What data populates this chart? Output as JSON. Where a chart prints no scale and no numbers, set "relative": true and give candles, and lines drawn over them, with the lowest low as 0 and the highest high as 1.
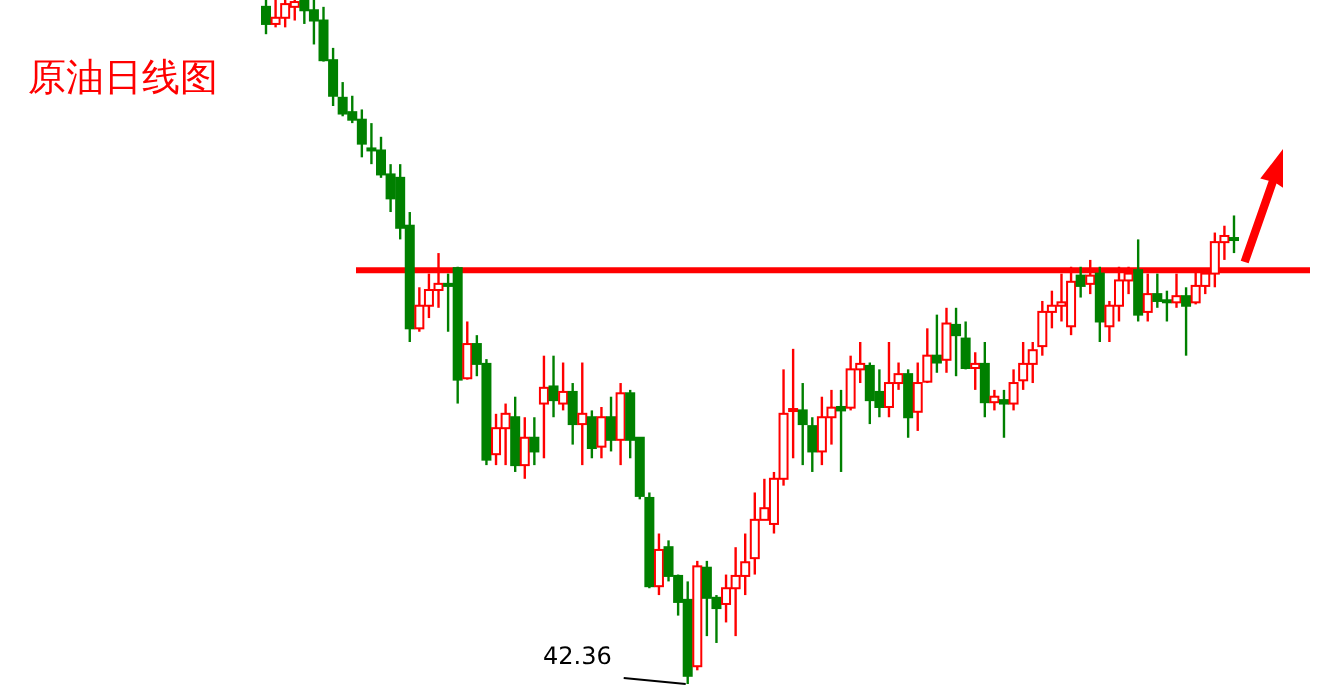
{
  "chart_data": {
    "type": "candlestick",
    "title": "原油日线图",
    "relative": true,
    "categories": [
      null,
      null,
      null,
      null,
      null,
      null,
      null,
      null,
      null,
      null,
      null,
      null,
      null,
      null,
      null,
      null,
      null,
      null,
      null,
      null,
      null,
      null,
      null,
      null,
      null,
      null,
      null,
      null,
      null,
      null,
      null,
      null,
      null,
      null,
      null,
      null,
      null,
      null,
      null,
      null,
      null,
      null,
      null,
      null,
      null,
      null,
      null,
      null,
      null,
      null,
      null,
      null,
      null,
      null,
      null,
      null,
      null,
      null,
      null,
      null,
      null,
      null,
      null,
      null,
      null,
      null,
      null,
      null,
      null,
      null,
      null,
      null,
      null,
      null,
      null,
      null,
      null,
      null,
      null,
      null,
      null,
      null,
      null,
      null,
      null,
      null,
      null,
      null,
      null,
      null,
      null,
      null,
      null,
      null,
      null,
      null,
      null,
      null,
      null,
      null,
      null,
      null
    ],
    "ohlc": [
      [
        0.99,
        1,
        0.95,
        0.965
      ],
      [
        0.965,
        1,
        0.96,
        0.974
      ],
      [
        0.974,
        1,
        0.96,
        0.994
      ],
      [
        0.99,
        1,
        0.97,
        0.997
      ],
      [
        1,
        1,
        0.965,
        0.985
      ],
      [
        0.985,
        1,
        0.935,
        0.97
      ],
      [
        0.97,
        0.99,
        0.91,
        0.912
      ],
      [
        0.912,
        0.93,
        0.845,
        0.86
      ],
      [
        0.857,
        0.88,
        0.83,
        0.834
      ],
      [
        0.836,
        0.86,
        0.82,
        0.825
      ],
      [
        0.825,
        0.84,
        0.77,
        0.79
      ],
      [
        0.783,
        0.82,
        0.76,
        0.781
      ],
      [
        0.78,
        0.8,
        0.74,
        0.745
      ],
      [
        0.745,
        0.76,
        0.69,
        0.71
      ],
      [
        0.74,
        0.76,
        0.65,
        0.667
      ],
      [
        0.67,
        0.69,
        0.5,
        0.52
      ],
      [
        0.52,
        0.58,
        0.515,
        0.553
      ],
      [
        0.553,
        0.6,
        0.535,
        0.576
      ],
      [
        0.576,
        0.63,
        0.55,
        0.585
      ],
      [
        0.585,
        0.6,
        0.515,
        0.582
      ],
      [
        0.608,
        0.61,
        0.41,
        0.445
      ],
      [
        0.447,
        0.53,
        0.445,
        0.497
      ],
      [
        0.497,
        0.51,
        0.45,
        0.468
      ],
      [
        0.468,
        0.475,
        0.32,
        0.328
      ],
      [
        0.336,
        0.395,
        0.32,
        0.374
      ],
      [
        0.374,
        0.41,
        0.32,
        0.395
      ],
      [
        0.39,
        0.42,
        0.31,
        0.32
      ],
      [
        0.32,
        0.39,
        0.3,
        0.36
      ],
      [
        0.36,
        0.39,
        0.32,
        0.34
      ],
      [
        0.41,
        0.48,
        0.33,
        0.433
      ],
      [
        0.435,
        0.48,
        0.39,
        0.415
      ],
      [
        0.41,
        0.47,
        0.4,
        0.427
      ],
      [
        0.427,
        0.44,
        0.35,
        0.38
      ],
      [
        0.38,
        0.47,
        0.32,
        0.395
      ],
      [
        0.39,
        0.4,
        0.33,
        0.345
      ],
      [
        0.347,
        0.405,
        0.33,
        0.39
      ],
      [
        0.39,
        0.42,
        0.34,
        0.357
      ],
      [
        0.357,
        0.44,
        0.32,
        0.425
      ],
      [
        0.425,
        0.43,
        0.33,
        0.357
      ],
      [
        0.36,
        0.36,
        0.27,
        0.275
      ],
      [
        0.272,
        0.28,
        0.14,
        0.143
      ],
      [
        0.143,
        0.22,
        0.13,
        0.196
      ],
      [
        0.2,
        0.21,
        0.15,
        0.158
      ],
      [
        0.158,
        0.16,
        0.1,
        0.12
      ],
      [
        0.123,
        0.15,
        0,
        0.012
      ],
      [
        0.026,
        0.18,
        0.02,
        0.172
      ],
      [
        0.17,
        0.18,
        0.07,
        0.126
      ],
      [
        0.126,
        0.13,
        0.06,
        0.111
      ],
      [
        0.117,
        0.16,
        0.09,
        0.14
      ],
      [
        0.14,
        0.2,
        0.07,
        0.158
      ],
      [
        0.158,
        0.22,
        0.13,
        0.178
      ],
      [
        0.184,
        0.28,
        0.16,
        0.24
      ],
      [
        0.24,
        0.3,
        0.24,
        0.257
      ],
      [
        0.234,
        0.31,
        0.22,
        0.3
      ],
      [
        0.3,
        0.46,
        0.29,
        0.395
      ],
      [
        0.4,
        0.49,
        0.33,
        0.402
      ],
      [
        0.4,
        0.44,
        0.32,
        0.38
      ],
      [
        0.377,
        0.39,
        0.31,
        0.34
      ],
      [
        0.34,
        0.42,
        0.32,
        0.39
      ],
      [
        0.39,
        0.43,
        0.35,
        0.404
      ],
      [
        0.405,
        0.43,
        0.31,
        0.4
      ],
      [
        0.404,
        0.48,
        0.4,
        0.46
      ],
      [
        0.46,
        0.5,
        0.44,
        0.468
      ],
      [
        0.465,
        0.47,
        0.38,
        0.415
      ],
      [
        0.427,
        0.46,
        0.39,
        0.405
      ],
      [
        0.405,
        0.5,
        0.39,
        0.44
      ],
      [
        0.44,
        0.47,
        0.43,
        0.453
      ],
      [
        0.453,
        0.46,
        0.36,
        0.39
      ],
      [
        0.398,
        0.47,
        0.37,
        0.44
      ],
      [
        0.442,
        0.52,
        0.44,
        0.48
      ],
      [
        0.48,
        0.54,
        0.455,
        0.47
      ],
      [
        0.474,
        0.55,
        0.455,
        0.527
      ],
      [
        0.525,
        0.55,
        0.45,
        0.51
      ],
      [
        0.505,
        0.53,
        0.46,
        0.462
      ],
      [
        0.462,
        0.485,
        0.43,
        0.468
      ],
      [
        0.468,
        0.5,
        0.39,
        0.412
      ],
      [
        0.412,
        0.43,
        0.4,
        0.42
      ],
      [
        0.415,
        0.43,
        0.36,
        0.41
      ],
      [
        0.41,
        0.46,
        0.4,
        0.44
      ],
      [
        0.444,
        0.5,
        0.43,
        0.468
      ],
      [
        0.468,
        0.5,
        0.44,
        0.488
      ],
      [
        0.494,
        0.56,
        0.48,
        0.544
      ],
      [
        0.544,
        0.575,
        0.52,
        0.553
      ],
      [
        0.553,
        0.6,
        0.53,
        0.558
      ],
      [
        0.523,
        0.61,
        0.51,
        0.588
      ],
      [
        0.597,
        0.61,
        0.565,
        0.582
      ],
      [
        0.585,
        0.62,
        0.57,
        0.597
      ],
      [
        0.6,
        0.61,
        0.5,
        0.53
      ],
      [
        0.523,
        0.56,
        0.5,
        0.553
      ],
      [
        0.553,
        0.61,
        0.53,
        0.59
      ],
      [
        0.59,
        0.61,
        0.57,
        0.6
      ],
      [
        0.605,
        0.65,
        0.53,
        0.54
      ],
      [
        0.544,
        0.6,
        0.53,
        0.57
      ],
      [
        0.57,
        0.6,
        0.55,
        0.56
      ],
      [
        0.561,
        0.575,
        0.53,
        0.56
      ],
      [
        0.558,
        0.6,
        0.55,
        0.567
      ],
      [
        0.567,
        0.58,
        0.48,
        0.553
      ],
      [
        0.558,
        0.605,
        0.555,
        0.582
      ],
      [
        0.582,
        0.605,
        0.57,
        0.6
      ],
      [
        0.6,
        0.66,
        0.58,
        0.646
      ],
      [
        0.646,
        0.67,
        0.62,
        0.655
      ],
      [
        0.652,
        0.685,
        0.63,
        0.65
      ]
    ],
    "colors": [
      "#008000",
      "#ff0000",
      "#ff0000",
      "#ff0000",
      "#008000",
      "#008000",
      "#008000",
      "#008000",
      "#008000",
      "#008000",
      "#008000",
      "#008000",
      "#008000",
      "#008000",
      "#008000",
      "#008000",
      "#ff0000",
      "#ff0000",
      "#ff0000",
      "#008000",
      "#008000",
      "#ff0000",
      "#008000",
      "#008000",
      "#ff0000",
      "#ff0000",
      "#008000",
      "#ff0000",
      "#008000",
      "#ff0000",
      "#008000",
      "#ff0000",
      "#008000",
      "#ff0000",
      "#008000",
      "#ff0000",
      "#008000",
      "#ff0000",
      "#008000",
      "#008000",
      "#008000",
      "#ff0000",
      "#008000",
      "#008000",
      "#008000",
      "#ff0000",
      "#008000",
      "#008000",
      "#ff0000",
      "#ff0000",
      "#ff0000",
      "#ff0000",
      "#ff0000",
      "#ff0000",
      "#ff0000",
      "#ff0000",
      "#008000",
      "#008000",
      "#ff0000",
      "#ff0000",
      "#008000",
      "#ff0000",
      "#ff0000",
      "#008000",
      "#008000",
      "#ff0000",
      "#ff0000",
      "#008000",
      "#ff0000",
      "#ff0000",
      "#008000",
      "#ff0000",
      "#008000",
      "#008000",
      "#ff0000",
      "#008000",
      "#ff0000",
      "#008000",
      "#ff0000",
      "#ff0000",
      "#ff0000",
      "#ff0000",
      "#ff0000",
      "#ff0000",
      "#ff0000",
      "#008000",
      "#ff0000",
      "#008000",
      "#ff0000",
      "#ff0000",
      "#ff0000",
      "#008000",
      "#ff0000",
      "#008000",
      "#008000",
      "#ff0000",
      "#008000",
      "#ff0000",
      "#ff0000",
      "#ff0000",
      "#ff0000",
      "#008000"
    ],
    "ref_lines": [
      {
        "axis": "y",
        "value": 0.605,
        "color": "#ff0000"
      }
    ],
    "annotations": [
      "42.36"
    ]
  }
}
